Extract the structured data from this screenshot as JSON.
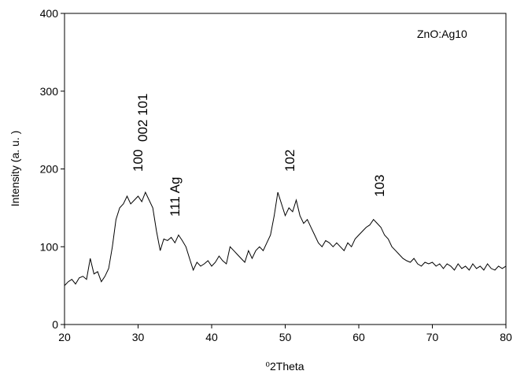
{
  "chart_data": {
    "type": "line",
    "xlabel": "⁰2Theta",
    "ylabel": "Intensity (a. u. )",
    "legend_text": "ZnO:Ag10",
    "annotations": [
      "100",
      "002 101",
      "111 Ag",
      "102",
      "103"
    ],
    "x": [
      20,
      20.5,
      21,
      21.5,
      22,
      22.5,
      23,
      23.5,
      24,
      24.5,
      25,
      25.5,
      26,
      26.5,
      27,
      27.5,
      28,
      28.5,
      29,
      29.5,
      30,
      30.5,
      31,
      31.5,
      32,
      32.5,
      33,
      33.5,
      34,
      34.5,
      35,
      35.5,
      36,
      36.5,
      37,
      37.5,
      38,
      38.5,
      39,
      39.5,
      40,
      40.5,
      41,
      41.5,
      42,
      42.5,
      43,
      43.5,
      44,
      44.5,
      45,
      45.5,
      46,
      46.5,
      47,
      47.5,
      48,
      48.5,
      49,
      49.5,
      50,
      50.5,
      51,
      51.5,
      52,
      52.5,
      53,
      53.5,
      54,
      54.5,
      55,
      55.5,
      56,
      56.5,
      57,
      57.5,
      58,
      58.5,
      59,
      59.5,
      60,
      60.5,
      61,
      61.5,
      62,
      62.5,
      63,
      63.5,
      64,
      64.5,
      65,
      65.5,
      66,
      66.5,
      67,
      67.5,
      68,
      68.5,
      69,
      69.5,
      70,
      70.5,
      71,
      71.5,
      72,
      72.5,
      73,
      73.5,
      74,
      74.5,
      75,
      75.5,
      76,
      76.5,
      77,
      77.5,
      78,
      78.5,
      79,
      79.5,
      80
    ],
    "series": [
      {
        "color": "#000000",
        "values": [
          50,
          55,
          58,
          52,
          60,
          62,
          58,
          85,
          65,
          68,
          55,
          62,
          72,
          100,
          135,
          150,
          155,
          165,
          155,
          160,
          165,
          158,
          170,
          160,
          150,
          120,
          95,
          110,
          108,
          112,
          105,
          115,
          108,
          100,
          85,
          70,
          80,
          75,
          78,
          82,
          75,
          80,
          88,
          82,
          78,
          100,
          95,
          90,
          85,
          80,
          95,
          85,
          95,
          100,
          95,
          105,
          115,
          140,
          170,
          155,
          140,
          150,
          145,
          160,
          140,
          130,
          135,
          125,
          115,
          105,
          100,
          108,
          105,
          100,
          105,
          100,
          95,
          105,
          100,
          110,
          115,
          120,
          125,
          128,
          135,
          130,
          125,
          115,
          110,
          100,
          95,
          90,
          85,
          82,
          80,
          85,
          78,
          75,
          80,
          78,
          80,
          75,
          78,
          72,
          78,
          75,
          70,
          78,
          72,
          75,
          70,
          78,
          72,
          75,
          70,
          78,
          72,
          70,
          75,
          72,
          75
        ]
      }
    ],
    "xlim": [
      20,
      80
    ],
    "ylim": [
      0,
      400
    ],
    "xticks": [
      20,
      30,
      40,
      50,
      60,
      70,
      80
    ],
    "yticks": [
      0,
      100,
      200,
      300,
      400
    ]
  }
}
